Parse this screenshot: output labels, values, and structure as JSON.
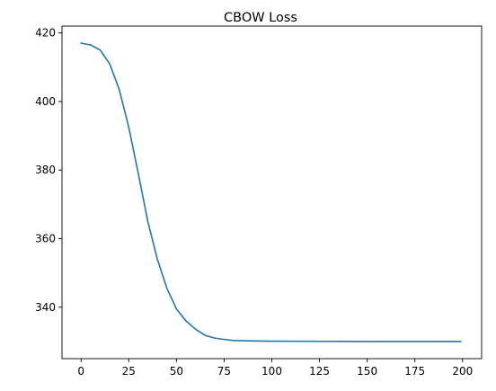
{
  "chart_data": {
    "type": "line",
    "title": "CBOW Loss",
    "xlabel": "",
    "ylabel": "",
    "xlim": [
      -10,
      210
    ],
    "ylim": [
      325,
      422
    ],
    "xticks": [
      0,
      25,
      50,
      75,
      100,
      125,
      150,
      175,
      200
    ],
    "yticks": [
      340,
      360,
      380,
      400,
      420
    ],
    "grid": false,
    "legend": "none",
    "series": [
      {
        "color": "#1f77b4",
        "x": [
          0,
          5,
          10,
          15,
          20,
          25,
          30,
          35,
          40,
          45,
          50,
          55,
          60,
          65,
          70,
          75,
          80,
          90,
          100,
          125,
          150,
          175,
          199
        ],
        "y": [
          417.0,
          416.5,
          415.0,
          411.0,
          403.5,
          392.5,
          379.0,
          365.0,
          354.0,
          345.5,
          339.5,
          336.0,
          333.6,
          331.8,
          331.0,
          330.6,
          330.3,
          330.15,
          330.1,
          330.05,
          330.0,
          330.0,
          330.0
        ]
      }
    ]
  }
}
